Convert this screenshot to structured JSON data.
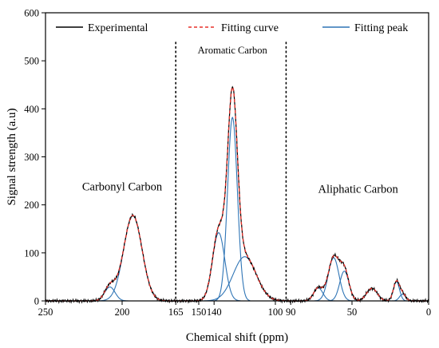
{
  "chart_data": {
    "type": "line",
    "xlabel": "Chemical shift (ppm)",
    "ylabel": "Signal strength (a.u)",
    "xlim": [
      250,
      0
    ],
    "ylim": [
      0,
      600
    ],
    "x_reversed": true,
    "grid": false,
    "legend_placement": "top",
    "x_ticks": [
      {
        "value": 250,
        "label": "250"
      },
      {
        "value": 200,
        "label": "200"
      },
      {
        "value": 165,
        "label": "165"
      },
      {
        "value": 150,
        "label": "150"
      },
      {
        "value": 140,
        "label": "140"
      },
      {
        "value": 100,
        "label": "100"
      },
      {
        "value": 90,
        "label": "90"
      },
      {
        "value": 50,
        "label": "50"
      },
      {
        "value": 0,
        "label": "0"
      }
    ],
    "y_ticks": [
      0,
      100,
      200,
      300,
      400,
      500,
      600
    ],
    "region_dividers": [
      165,
      93
    ],
    "region_labels": [
      {
        "text": "Carbonyl Carbon",
        "x": 200,
        "y": 230
      },
      {
        "text": "Aromatic Carbon",
        "x": 128,
        "y": 515
      },
      {
        "text": "Aliphatic Carbon",
        "x": 46,
        "y": 225
      }
    ],
    "series": [
      {
        "name": "Experimental",
        "color": "#000000",
        "style": "solid"
      },
      {
        "name": "Fitting curve",
        "color": "#e8312a",
        "style": "dashed"
      },
      {
        "name": "Fitting peak",
        "color": "#2e74b5",
        "style": "solid"
      }
    ],
    "peaks": [
      {
        "center": 208,
        "height": 29,
        "sigma": 3.4
      },
      {
        "center": 193,
        "height": 178,
        "sigma": 6.0
      },
      {
        "center": 137,
        "height": 142,
        "sigma": 4.0
      },
      {
        "center": 128,
        "height": 382,
        "sigma": 3.2
      },
      {
        "center": 120,
        "height": 92,
        "sigma": 7.5
      },
      {
        "center": 72,
        "height": 27,
        "sigma": 3.0
      },
      {
        "center": 62,
        "height": 90,
        "sigma": 3.5
      },
      {
        "center": 55,
        "height": 62,
        "sigma": 3.0
      },
      {
        "center": 37,
        "height": 26,
        "sigma": 3.5
      },
      {
        "center": 21,
        "height": 40,
        "sigma": 2.0
      },
      {
        "center": 17,
        "height": 14,
        "sigma": 2.0
      }
    ]
  }
}
